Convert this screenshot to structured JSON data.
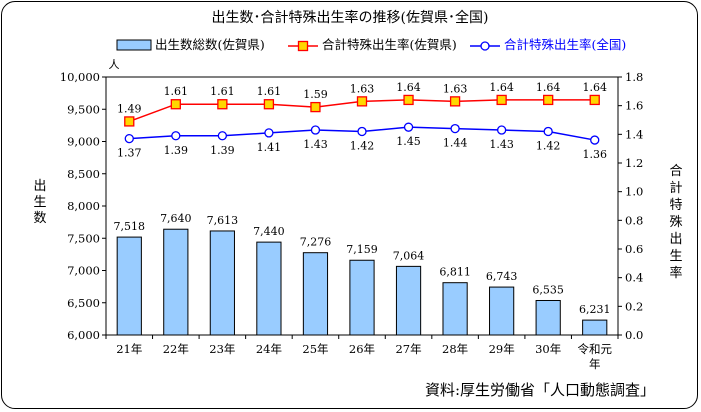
{
  "chart_data": {
    "type": "bar+line",
    "title": "出生数･合計特殊出生率の推移(佐賀県･全国)",
    "categories": [
      "21年",
      "22年",
      "23年",
      "24年",
      "25年",
      "26年",
      "27年",
      "28年",
      "29年",
      "30年",
      "令和元年"
    ],
    "category_lines": [
      [
        "21年"
      ],
      [
        "22年"
      ],
      [
        "23年"
      ],
      [
        "24年"
      ],
      [
        "25年"
      ],
      [
        "26年"
      ],
      [
        "27年"
      ],
      [
        "28年"
      ],
      [
        "29年"
      ],
      [
        "30年"
      ],
      [
        "令和元",
        "年"
      ]
    ],
    "series": [
      {
        "name": "出生数総数(佐賀県)",
        "kind": "bar",
        "axis": "left",
        "color": "#99ccff",
        "values": [
          7518,
          7640,
          7613,
          7440,
          7276,
          7159,
          7064,
          6811,
          6743,
          6535,
          6231
        ],
        "labels": [
          "7,518",
          "7,640",
          "7,613",
          "7,440",
          "7,276",
          "7,159",
          "7,064",
          "6,811",
          "6,743",
          "6,535",
          "6,231"
        ]
      },
      {
        "name": "合計特殊出生率(佐賀県)",
        "kind": "line",
        "axis": "right",
        "color": "#ff0000",
        "marker": "square",
        "marker_fill": "#ffd700",
        "values": [
          1.49,
          1.61,
          1.61,
          1.61,
          1.59,
          1.63,
          1.64,
          1.63,
          1.64,
          1.64,
          1.64
        ],
        "labels": [
          "1.49",
          "1.61",
          "1.61",
          "1.61",
          "1.59",
          "1.63",
          "1.64",
          "1.63",
          "1.64",
          "1.64",
          "1.64"
        ]
      },
      {
        "name": "合計特殊出生率(全国)",
        "kind": "line",
        "axis": "right",
        "color": "#0000ff",
        "marker": "circle",
        "marker_fill": "#ffffff",
        "values": [
          1.37,
          1.39,
          1.39,
          1.41,
          1.43,
          1.42,
          1.45,
          1.44,
          1.43,
          1.42,
          1.36
        ],
        "labels": [
          "1.37",
          "1.39",
          "1.39",
          "1.41",
          "1.43",
          "1.42",
          "1.45",
          "1.44",
          "1.43",
          "1.42",
          "1.36"
        ]
      }
    ],
    "y_left": {
      "min": 6000,
      "max": 10000,
      "step": 500,
      "ticks": [
        "6,000",
        "6,500",
        "7,000",
        "7,500",
        "8,000",
        "8,500",
        "9,000",
        "9,500",
        "10,000"
      ],
      "label": "出生数",
      "unit": "人"
    },
    "y_right": {
      "min": 0.0,
      "max": 1.8,
      "step": 0.2,
      "ticks": [
        "0.0",
        "0.2",
        "0.4",
        "0.6",
        "0.8",
        "1.0",
        "1.2",
        "1.4",
        "1.6",
        "1.8"
      ],
      "label": "合計特殊出生率"
    },
    "legend_position": "top",
    "grid": false,
    "source": "資料:厚生労働省「人口動態調査」"
  }
}
